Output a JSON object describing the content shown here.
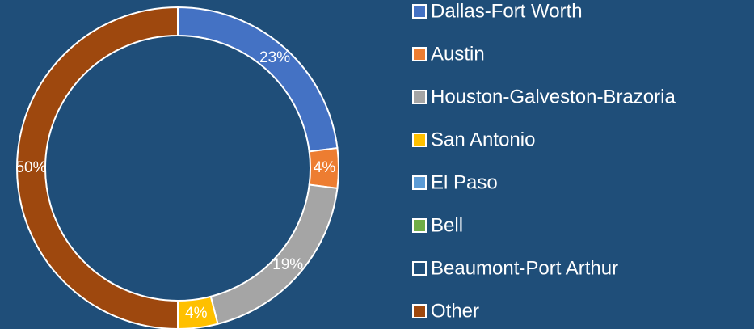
{
  "chart_data": {
    "type": "donut",
    "categories": [
      "Dallas-Fort Worth",
      "Austin",
      "Houston-Galveston-Brazoria",
      "San Antonio",
      "El Paso",
      "Bell",
      "Beaumont-Port Arthur",
      "Other"
    ],
    "values": [
      23,
      4,
      19,
      4,
      0,
      0,
      0,
      50
    ],
    "value_labels": [
      "23%",
      "4%",
      "19%",
      "4%",
      null,
      null,
      null,
      "50%"
    ],
    "colors": [
      "#4472c4",
      "#ed7d31",
      "#a5a5a5",
      "#ffc000",
      "#5b9bd5",
      "#70ad47",
      "#1f4e79",
      "#9e480e"
    ],
    "legend": "right"
  }
}
